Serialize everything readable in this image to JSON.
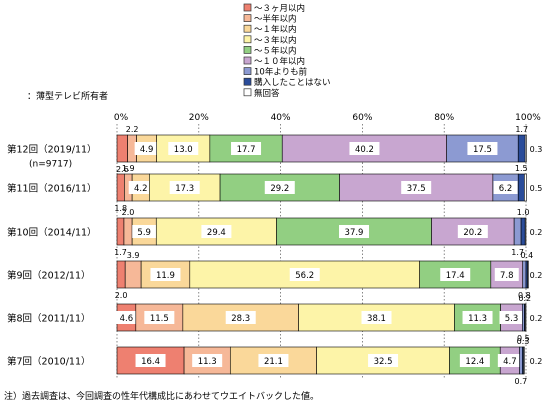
{
  "chart_data": {
    "type": "bar",
    "orientation": "horizontal",
    "stacked": true,
    "subtitle": "：薄型テレビ所有者",
    "note": "注）過去調査は、今回調査の性年代構成比にあわせてウエイトバックした値。",
    "xlim": [
      0,
      100
    ],
    "x_ticks": [
      "0%",
      "20%",
      "40%",
      "60%",
      "80%",
      "100%"
    ],
    "legend_position": "top-right",
    "categories": [
      "第12回（2019/11）",
      "第11回（2016/11）",
      "第10回（2014/11）",
      "第9回（2012/11）",
      "第8回（2011/11）",
      "第7回（2010/11）"
    ],
    "category_sub": [
      "(n=9717)",
      "",
      "",
      "",
      "",
      ""
    ],
    "series": [
      {
        "name": "～３ヶ月以内",
        "color": "#ee8070",
        "values": [
          2.6,
          1.8,
          1.7,
          2.0,
          4.6,
          16.4
        ]
      },
      {
        "name": "～半年以内",
        "color": "#f6b898",
        "values": [
          2.2,
          1.9,
          2.0,
          3.9,
          11.5,
          11.3
        ]
      },
      {
        "name": "～１年以内",
        "color": "#fad89a",
        "values": [
          4.9,
          4.2,
          5.9,
          11.9,
          28.3,
          21.1
        ]
      },
      {
        "name": "～３年以内",
        "color": "#fdf4a8",
        "values": [
          13.0,
          17.3,
          29.4,
          56.2,
          38.1,
          32.5
        ]
      },
      {
        "name": "～５年以内",
        "color": "#92cf82",
        "values": [
          17.7,
          29.2,
          37.9,
          17.4,
          11.3,
          12.4
        ]
      },
      {
        "name": "～１０年以内",
        "color": "#c8a6d0",
        "values": [
          40.2,
          37.5,
          20.2,
          7.8,
          5.3,
          4.7
        ]
      },
      {
        "name": "10年よりも前",
        "color": "#8c9ad2",
        "values": [
          17.5,
          6.2,
          1.7,
          0.8,
          0.5,
          0.7
        ]
      },
      {
        "name": "購入したことはない",
        "color": "#2a4c9a",
        "values": [
          1.7,
          1.5,
          1.0,
          0.4,
          0.2,
          0.3
        ]
      },
      {
        "name": "無回答",
        "color": "#ffffff",
        "values": [
          0.3,
          0.5,
          0.2,
          0.2,
          0.2,
          0.2
        ]
      }
    ]
  }
}
